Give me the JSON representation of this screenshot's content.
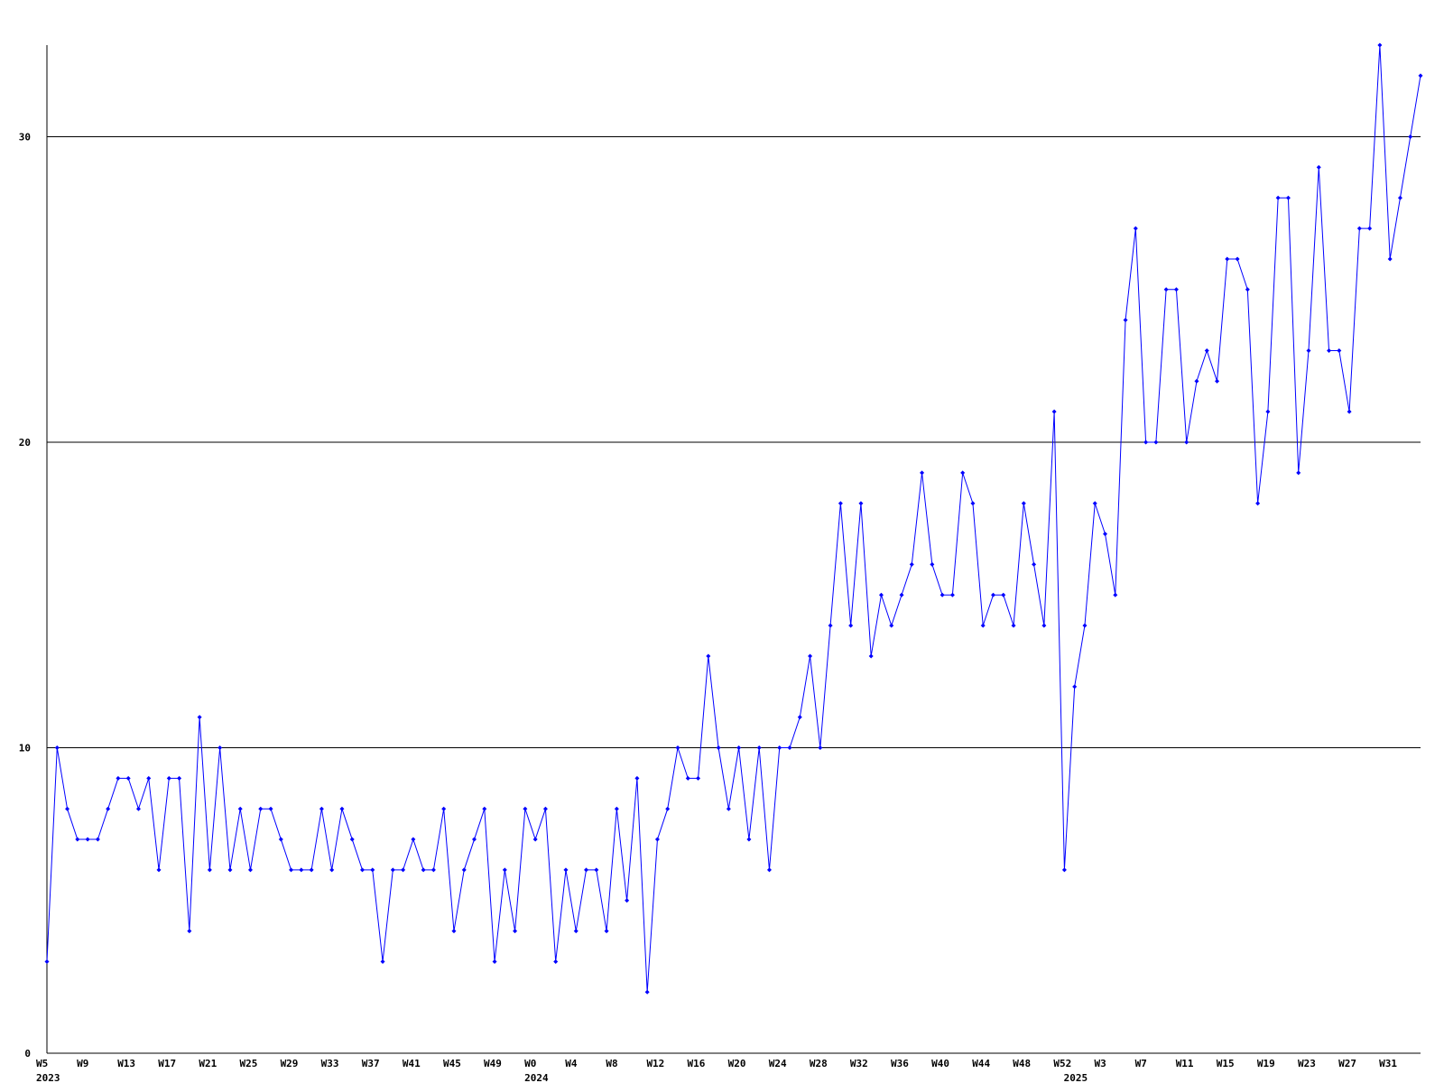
{
  "chart_data": {
    "type": "line",
    "categories": [
      "W5",
      null,
      null,
      null,
      "W9",
      null,
      null,
      null,
      "W13",
      null,
      null,
      null,
      "W17",
      null,
      null,
      null,
      "W21",
      null,
      null,
      null,
      "W25",
      null,
      null,
      null,
      "W29",
      null,
      null,
      null,
      "W33",
      null,
      null,
      null,
      "W37",
      null,
      null,
      null,
      "W41",
      null,
      null,
      null,
      "W45",
      null,
      null,
      null,
      "W49",
      null,
      null,
      null,
      "W0",
      null,
      null,
      null,
      "W4",
      null,
      null,
      null,
      "W8",
      null,
      null,
      null,
      "W12",
      null,
      null,
      null,
      "W16",
      null,
      null,
      null,
      "W20",
      null,
      null,
      null,
      "W24",
      null,
      null,
      null,
      "W28",
      null,
      null,
      null,
      "W32",
      null,
      null,
      null,
      "W36",
      null,
      null,
      null,
      "W40",
      null,
      null,
      null,
      "W44",
      null,
      null,
      null,
      "W48",
      null,
      null,
      null,
      "W52",
      null,
      null,
      null,
      "W3",
      null,
      null,
      null,
      "W7",
      null,
      null,
      null,
      "W11",
      null,
      null,
      null,
      "W15",
      null,
      null,
      null,
      "W19",
      null,
      null,
      null,
      "W23",
      null,
      null,
      null,
      "W27",
      null,
      null,
      null,
      "W31",
      null,
      null,
      null
    ],
    "years": [
      "2023",
      null,
      null,
      null,
      null,
      null,
      null,
      null,
      null,
      null,
      null,
      null,
      null,
      null,
      null,
      null,
      null,
      null,
      null,
      null,
      null,
      null,
      null,
      null,
      null,
      null,
      null,
      null,
      null,
      null,
      null,
      null,
      null,
      null,
      null,
      null,
      null,
      null,
      null,
      null,
      null,
      null,
      null,
      null,
      null,
      null,
      null,
      null,
      "2024",
      null,
      null,
      null,
      null,
      null,
      null,
      null,
      null,
      null,
      null,
      null,
      null,
      null,
      null,
      null,
      null,
      null,
      null,
      null,
      null,
      null,
      null,
      null,
      null,
      null,
      null,
      null,
      null,
      null,
      null,
      null,
      null,
      null,
      null,
      null,
      null,
      null,
      null,
      null,
      null,
      null,
      null,
      null,
      null,
      null,
      null,
      null,
      null,
      null,
      null,
      null,
      null,
      "2025",
      null,
      null,
      null,
      null,
      null,
      null,
      null,
      null,
      null,
      null,
      null,
      null,
      null,
      null,
      null,
      null,
      null,
      null,
      null,
      null,
      null,
      null,
      null,
      null,
      null,
      null,
      null,
      null,
      null,
      null,
      null,
      null,
      null,
      null
    ],
    "series": [
      {
        "color": "#0000ff",
        "values": [
          3,
          10,
          8,
          7,
          7,
          7,
          8,
          9,
          9,
          8,
          9,
          6,
          9,
          9,
          4,
          11,
          6,
          10,
          6,
          8,
          6,
          8,
          8,
          7,
          6,
          6,
          6,
          8,
          6,
          8,
          7,
          6,
          6,
          3,
          6,
          6,
          7,
          6,
          6,
          8,
          4,
          6,
          7,
          8,
          3,
          6,
          4,
          8,
          7,
          8,
          3,
          6,
          4,
          6,
          6,
          4,
          8,
          5,
          9,
          2,
          7,
          8,
          10,
          9,
          9,
          13,
          10,
          8,
          10,
          7,
          10,
          6,
          10,
          10,
          11,
          13,
          10,
          14,
          18,
          14,
          18,
          13,
          15,
          14,
          15,
          16,
          19,
          16,
          15,
          15,
          19,
          18,
          14,
          15,
          15,
          14,
          18,
          16,
          14,
          21,
          6,
          12,
          14,
          18,
          17,
          15,
          24,
          27,
          20,
          20,
          25,
          25,
          20,
          22,
          23,
          22,
          26,
          26,
          25,
          18,
          21,
          28,
          28,
          19,
          23,
          29,
          23,
          23,
          21,
          27,
          27,
          33,
          26,
          28,
          30,
          32
        ]
      }
    ],
    "ylim": [
      0,
      33
    ],
    "yticks": [
      0,
      10,
      20,
      30
    ],
    "grid": true
  }
}
